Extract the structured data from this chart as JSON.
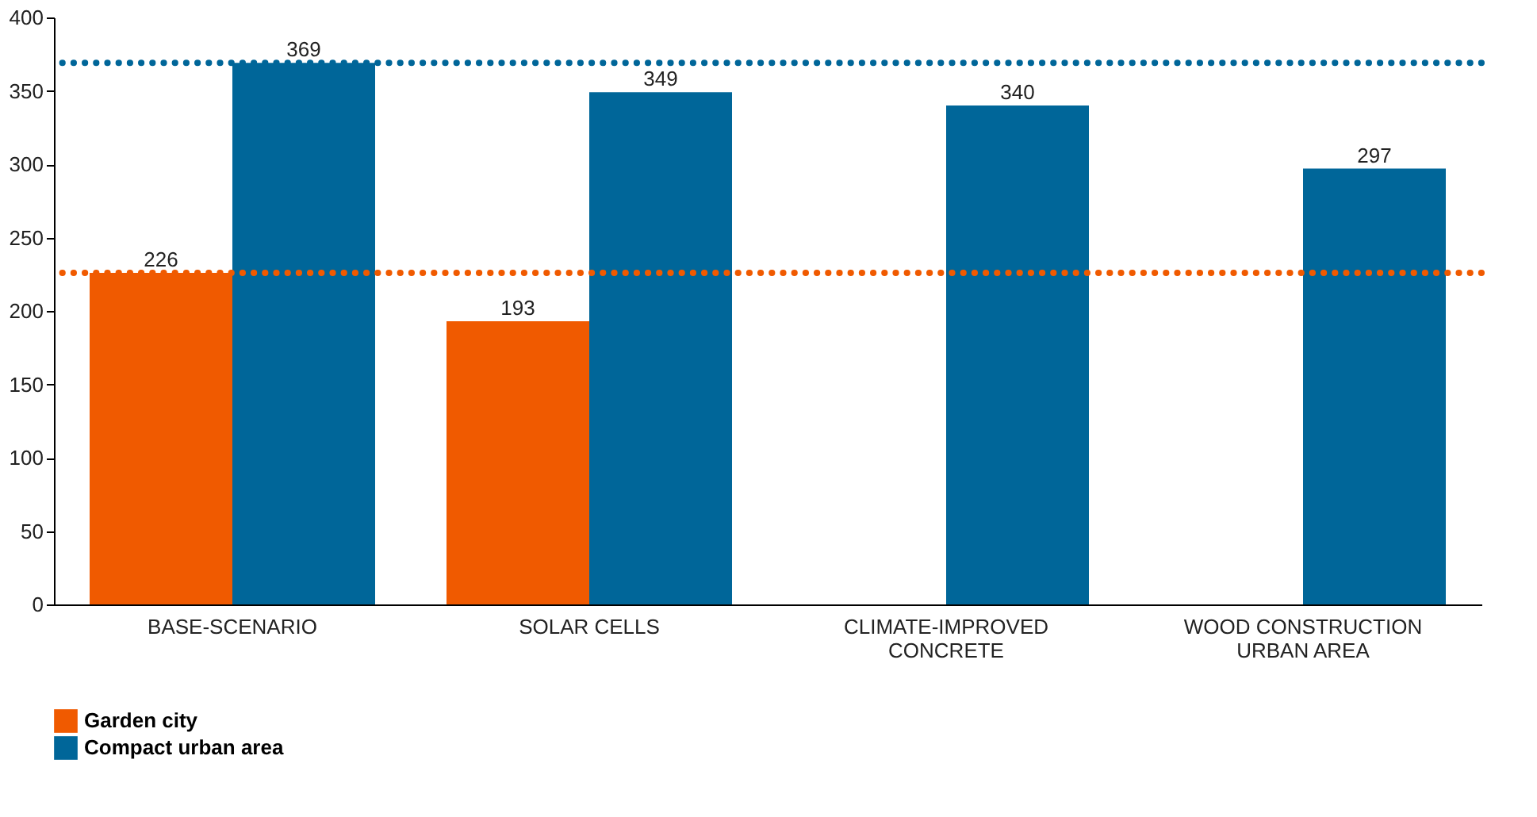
{
  "chart_data": {
    "type": "bar",
    "categories": [
      "BASE-SCENARIO",
      "SOLAR CELLS",
      "CLIMATE-IMPROVED\nCONCRETE",
      "WOOD CONSTRUCTION\nURBAN AREA"
    ],
    "series": [
      {
        "name": "Garden city",
        "color": "#f05a00",
        "values": [
          226,
          193,
          null,
          null
        ]
      },
      {
        "name": "Compact urban area",
        "color": "#006699",
        "values": [
          369,
          349,
          340,
          297
        ]
      }
    ],
    "ylim": [
      0,
      400
    ],
    "yticks": [
      0,
      50,
      100,
      150,
      200,
      250,
      300,
      350,
      400
    ],
    "ref_lines": [
      {
        "axis": "y",
        "value": 226,
        "color": "#f05a00",
        "line_style": "dotted"
      },
      {
        "axis": "y",
        "value": 369,
        "color": "#006699",
        "line_style": "dotted"
      }
    ],
    "data_labels": true,
    "grid": false,
    "legend": "bottom left"
  }
}
